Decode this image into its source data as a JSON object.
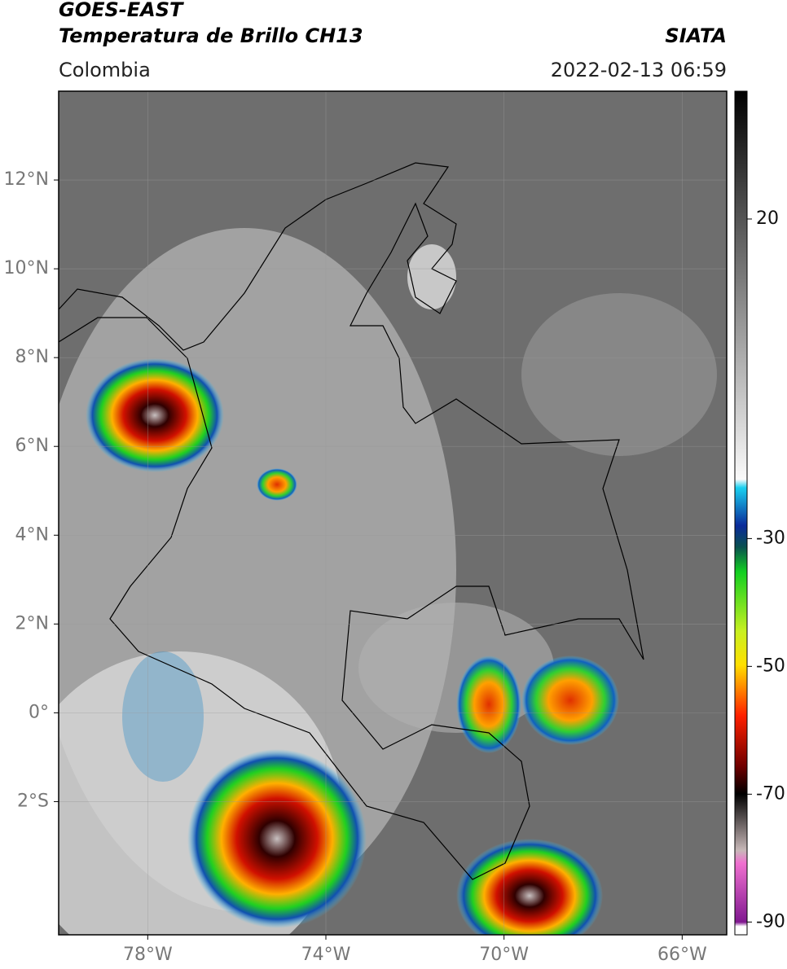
{
  "header": {
    "title": "GOES-EAST",
    "subtitle": "Temperatura de Brillo CH13",
    "region": "Colombia",
    "source": "SIATA",
    "timestamp": "2022-02-13 06:59"
  },
  "map": {
    "lon_range": [
      -80,
      -65
    ],
    "lat_range": [
      -5,
      14
    ],
    "lat_ticks": [
      {
        "value": 12,
        "label": "12°N"
      },
      {
        "value": 10,
        "label": "10°N"
      },
      {
        "value": 8,
        "label": "8°N"
      },
      {
        "value": 6,
        "label": "6°N"
      },
      {
        "value": 4,
        "label": "4°N"
      },
      {
        "value": 2,
        "label": "2°N"
      },
      {
        "value": 0,
        "label": "0°"
      },
      {
        "value": -2,
        "label": "2°S"
      }
    ],
    "lon_ticks": [
      {
        "value": -78,
        "label": "78°W"
      },
      {
        "value": -74,
        "label": "74°W"
      },
      {
        "value": -70,
        "label": "70°W"
      },
      {
        "value": -66,
        "label": "66°W"
      }
    ]
  },
  "colorbar": {
    "range": [
      -92,
      40
    ],
    "ticks": [
      20,
      -30,
      -50,
      -70,
      -90
    ]
  }
}
